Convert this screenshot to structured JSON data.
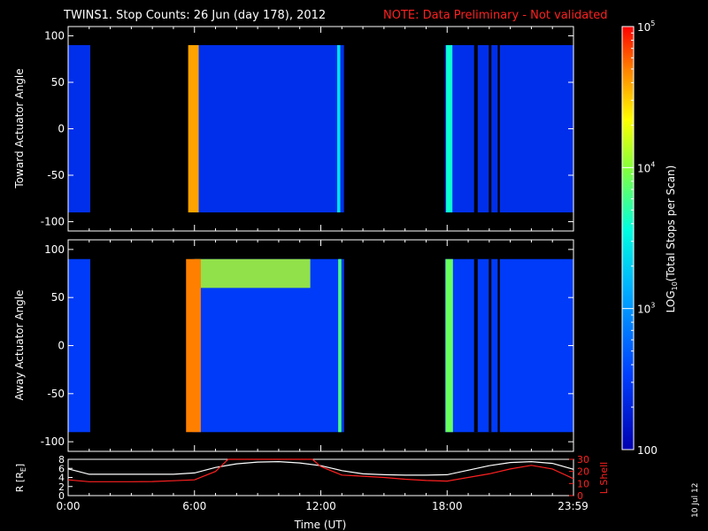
{
  "title": "TWINS1. Stop Counts: 26 Jun (day 178), 2012",
  "note": "NOTE: Data Preliminary - Not validated",
  "stamp": "10 Jul 12",
  "colors": {
    "background": "#000000",
    "foreground": "#ffffff",
    "note": "#ff2020",
    "lshell": "#ff2020",
    "r_trace": "#ffffff"
  },
  "chart_data": [
    {
      "type": "heatmap",
      "panel": "toward",
      "ylabel": "Toward Actuator Angle",
      "ylim": [
        -110,
        110
      ],
      "xlim": [
        0,
        24
      ],
      "yticks": [
        -100,
        -50,
        0,
        50,
        100
      ],
      "data_range_angle": [
        -90,
        90
      ],
      "coverage_hours": [
        [
          0.0,
          1.05
        ],
        [
          5.9,
          13.1
        ],
        [
          17.9,
          20.4
        ],
        [
          20.5,
          23.98
        ]
      ],
      "gaps_hours": [
        [
          19.28,
          19.45
        ],
        [
          19.98,
          20.1
        ]
      ],
      "dominant_log_counts": 2.4,
      "bright_bands": [
        {
          "hour": 5.95,
          "width": 0.5,
          "log_counts": 4.6,
          "label": "orange stripe ~06:00"
        },
        {
          "hour": 12.85,
          "width": 0.15,
          "log_counts": 3.4
        },
        {
          "hour": 18.1,
          "width": 0.3,
          "log_counts": 3.6
        }
      ]
    },
    {
      "type": "heatmap",
      "panel": "away",
      "ylabel": "Away Actuator Angle",
      "ylim": [
        -110,
        110
      ],
      "xlim": [
        0,
        24
      ],
      "yticks": [
        -100,
        -50,
        0,
        50,
        100
      ],
      "data_range_angle": [
        -90,
        90
      ],
      "coverage_hours": [
        [
          0.0,
          1.05
        ],
        [
          5.9,
          13.1
        ],
        [
          17.9,
          20.4
        ],
        [
          20.5,
          23.98
        ]
      ],
      "gaps_hours": [
        [
          19.28,
          19.45
        ],
        [
          19.98,
          20.1
        ]
      ],
      "dominant_log_counts": 2.5,
      "bright_bands": [
        {
          "hour": 5.95,
          "width": 0.7,
          "log_counts": 4.7,
          "label": "orange stripe ~06:00"
        },
        {
          "hour": 12.9,
          "width": 0.15,
          "log_counts": 3.8
        },
        {
          "hour": 18.1,
          "width": 0.35,
          "log_counts": 3.9
        }
      ],
      "high_angle_enhancement": {
        "hours": [
          6.0,
          11.5
        ],
        "angle_from": 60,
        "log_counts": 4.1
      }
    },
    {
      "type": "line",
      "panel": "orbit",
      "xlabel": "Time (UT)",
      "xticks": [
        {
          "value": 0,
          "label": "0:00"
        },
        {
          "value": 6,
          "label": "6:00"
        },
        {
          "value": 12,
          "label": "12:00"
        },
        {
          "value": 18,
          "label": "18:00"
        },
        {
          "value": 23.98,
          "label": "23:59"
        }
      ],
      "xlim": [
        0,
        24
      ],
      "left_axis": {
        "label": "R [RE]",
        "label_main": "R [R",
        "label_sub": "E",
        "ylim": [
          0,
          8
        ],
        "yticks": [
          0,
          2,
          4,
          6,
          8
        ]
      },
      "right_axis": {
        "label": "L Shell",
        "ylim": [
          0,
          30
        ],
        "yticks": [
          0,
          10,
          20,
          30
        ]
      },
      "series": [
        {
          "name": "R",
          "axis": "left",
          "x": [
            0,
            0.5,
            1,
            2,
            3,
            4,
            5,
            6,
            7,
            8,
            9,
            10,
            11,
            12,
            13,
            14,
            15,
            16,
            17,
            18,
            19,
            20,
            21,
            22,
            23,
            24
          ],
          "y": [
            5.9,
            5.3,
            4.7,
            4.7,
            4.7,
            4.7,
            4.7,
            5.0,
            6.2,
            7.0,
            7.4,
            7.5,
            7.2,
            6.6,
            5.5,
            4.8,
            4.6,
            4.5,
            4.5,
            4.6,
            5.6,
            6.6,
            7.3,
            7.5,
            7.1,
            5.8
          ]
        },
        {
          "name": "L Shell",
          "axis": "right",
          "x": [
            0,
            1,
            2,
            3,
            4,
            5,
            6,
            7,
            7.6,
            11.6,
            12,
            13,
            14,
            15,
            16,
            17,
            18,
            19,
            20,
            21,
            22,
            23,
            24
          ],
          "y": [
            13,
            11.5,
            11.5,
            11.5,
            11.6,
            12.3,
            13,
            20,
            30,
            30,
            24,
            17,
            16,
            15,
            13.5,
            12.5,
            12,
            15,
            18,
            22,
            25,
            22,
            14
          ]
        }
      ]
    },
    {
      "type": "heatmap",
      "panel": "colorbar",
      "ylabel": "LOG10(Total Stops per Scan)",
      "ylabel_main": "LOG",
      "ylabel_sub": "10",
      "ylabel_rest": "(Total Stops per Scan)",
      "scale": "log",
      "range": [
        100,
        100000
      ],
      "ticks": [
        {
          "value": 100,
          "label": "100"
        },
        {
          "value": 1000,
          "base": "10",
          "exp": "3"
        },
        {
          "value": 10000,
          "base": "10",
          "exp": "4"
        },
        {
          "value": 100000,
          "base": "10",
          "exp": "5"
        }
      ]
    }
  ]
}
